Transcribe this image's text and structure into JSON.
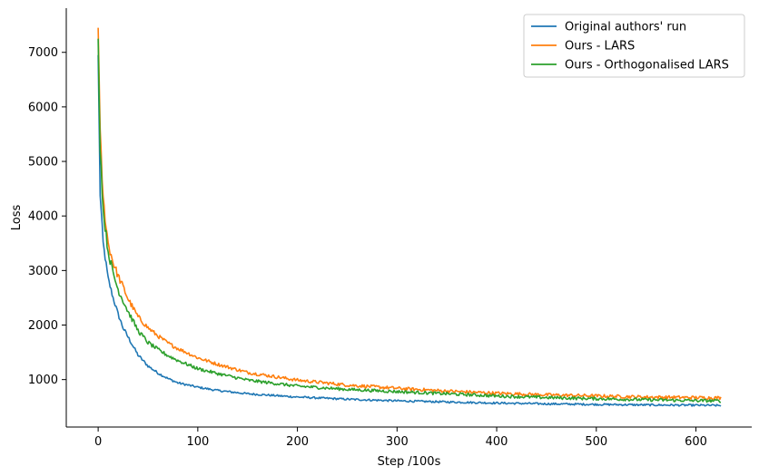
{
  "chart_data": {
    "type": "line",
    "title": "",
    "xlabel": "Step /100s",
    "ylabel": "Loss",
    "xlim": [
      -32,
      656
    ],
    "ylim": [
      130,
      7810
    ],
    "xticks": [
      0,
      100,
      200,
      300,
      400,
      500,
      600
    ],
    "yticks": [
      1000,
      2000,
      3000,
      4000,
      5000,
      6000,
      7000
    ],
    "grid": false,
    "legend_position": "top-right",
    "series": [
      {
        "name": "Original authors' run",
        "color": "#1f77b4",
        "noise": 18,
        "x": [
          0,
          2,
          5,
          10,
          15,
          20,
          25,
          30,
          40,
          50,
          60,
          70,
          80,
          100,
          120,
          150,
          200,
          250,
          300,
          350,
          400,
          450,
          500,
          550,
          600,
          625
        ],
        "y": [
          6950,
          4400,
          3500,
          2850,
          2500,
          2200,
          1950,
          1780,
          1450,
          1250,
          1120,
          1020,
          940,
          860,
          800,
          740,
          680,
          640,
          610,
          590,
          570,
          555,
          545,
          535,
          530,
          525
        ]
      },
      {
        "name": "Ours - LARS",
        "color": "#ff7f0e",
        "noise": 30,
        "x": [
          0,
          2,
          5,
          10,
          15,
          20,
          25,
          30,
          40,
          50,
          60,
          70,
          80,
          100,
          120,
          150,
          200,
          250,
          300,
          350,
          400,
          450,
          500,
          550,
          600,
          625
        ],
        "y": [
          7450,
          5500,
          4300,
          3500,
          3150,
          2900,
          2700,
          2480,
          2150,
          1950,
          1800,
          1670,
          1570,
          1400,
          1280,
          1130,
          990,
          900,
          840,
          790,
          750,
          720,
          700,
          680,
          670,
          665
        ]
      },
      {
        "name": "Ours - Orthogonalised LARS",
        "color": "#2ca02c",
        "noise": 28,
        "x": [
          0,
          2,
          5,
          10,
          15,
          20,
          25,
          30,
          40,
          50,
          60,
          70,
          80,
          100,
          120,
          150,
          200,
          250,
          300,
          350,
          400,
          450,
          500,
          550,
          600,
          625
        ],
        "y": [
          7250,
          5300,
          4100,
          3350,
          2950,
          2650,
          2450,
          2250,
          1900,
          1680,
          1550,
          1440,
          1350,
          1200,
          1110,
          990,
          880,
          820,
          780,
          740,
          700,
          670,
          650,
          630,
          615,
          610
        ]
      }
    ]
  }
}
